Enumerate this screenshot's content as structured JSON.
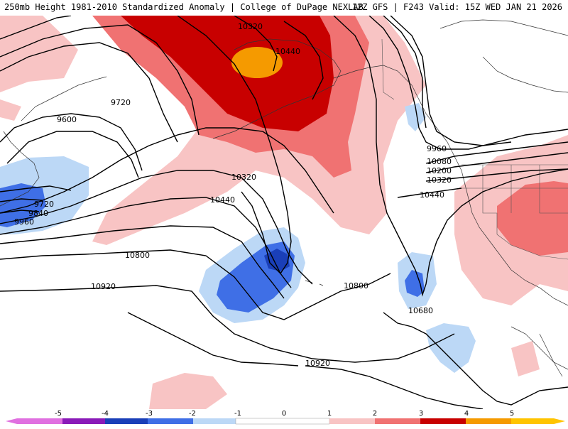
{
  "header": {
    "title": "250mb Height 1981-2010 Standardized Anomaly | College of DuPage NEXLAB",
    "run_info": "12Z GFS | F243 Valid: 15Z WED JAN 21 2026"
  },
  "colors": {
    "neg5": "#e070e0",
    "neg4": "#8a1ab8",
    "neg3": "#1a3fb8",
    "neg2": "#3f6fe6",
    "neg1": "#bcd8f6",
    "zero": "#ffffff",
    "pos1": "#f8c4c4",
    "pos2": "#f07272",
    "pos3": "#c80000",
    "pos4": "#f59a00",
    "pos5": "#ffc400"
  },
  "colorbar": {
    "labels": [
      "-5",
      "-4",
      "-3",
      "-2",
      "-1",
      "0",
      "1",
      "2",
      "3",
      "4",
      "5"
    ]
  },
  "contour_labels": [
    "10320",
    "10440",
    "9720",
    "9600",
    "9960",
    "10080",
    "10200",
    "10320",
    "10440",
    "10320",
    "10440",
    "9720",
    "9840",
    "9960",
    "10800",
    "10920",
    "10800",
    "10680",
    "10920"
  ]
}
